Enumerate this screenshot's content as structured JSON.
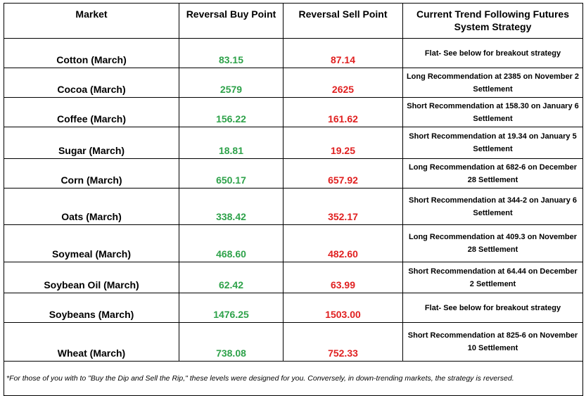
{
  "headers": {
    "market": "Market",
    "buy": "Reversal Buy Point",
    "sell": "Reversal Sell Point",
    "strategy": "Current Trend Following Futures System Strategy"
  },
  "rows": [
    {
      "market": "Cotton (March)",
      "buy": "83.15",
      "sell": "87.14",
      "strategy": "Flat- See below for breakout strategy"
    },
    {
      "market": "Cocoa (March)",
      "buy": "2579",
      "sell": "2625",
      "strategy": "Long Recommendation at 2385 on November 2 Settlement"
    },
    {
      "market": "Coffee (March)",
      "buy": "156.22",
      "sell": "161.62",
      "strategy": "Short Recommendation at 158.30 on January 6 Settlement"
    },
    {
      "market": "Sugar (March)",
      "buy": "18.81",
      "sell": "19.25",
      "strategy": "Short Recommendation at 19.34 on January 5 Settlement"
    },
    {
      "market": "Corn (March)",
      "buy": "650.17",
      "sell": "657.92",
      "strategy": "Long Recommendation at 682-6 on December 28 Settlement"
    },
    {
      "market": "Oats (March)",
      "buy": "338.42",
      "sell": "352.17",
      "strategy": "Short Recommendation at 344-2 on January 6 Settlement"
    },
    {
      "market": "Soymeal (March)",
      "buy": "468.60",
      "sell": "482.60",
      "strategy": "Long Recommendation at 409.3 on November 28 Settlement"
    },
    {
      "market": "Soybean Oil (March)",
      "buy": "62.42",
      "sell": "63.99",
      "strategy": "Short Recommendation at 64.44 on December 2 Settlement"
    },
    {
      "market": "Soybeans (March)",
      "buy": "1476.25",
      "sell": "1503.00",
      "strategy": "Flat- See below for breakout strategy"
    },
    {
      "market": "Wheat (March)",
      "buy": "738.08",
      "sell": "752.33",
      "strategy": "Short Recommendation at 825-6 on November 10 Settlement"
    }
  ],
  "footnote": "*For those of you with to \"Buy the Dip and Sell the Rip,\" these levels were designed for you. Conversely, in down-trending markets, the strategy is reversed.",
  "colors": {
    "buy": "#2ea24a",
    "sell": "#e02020"
  }
}
